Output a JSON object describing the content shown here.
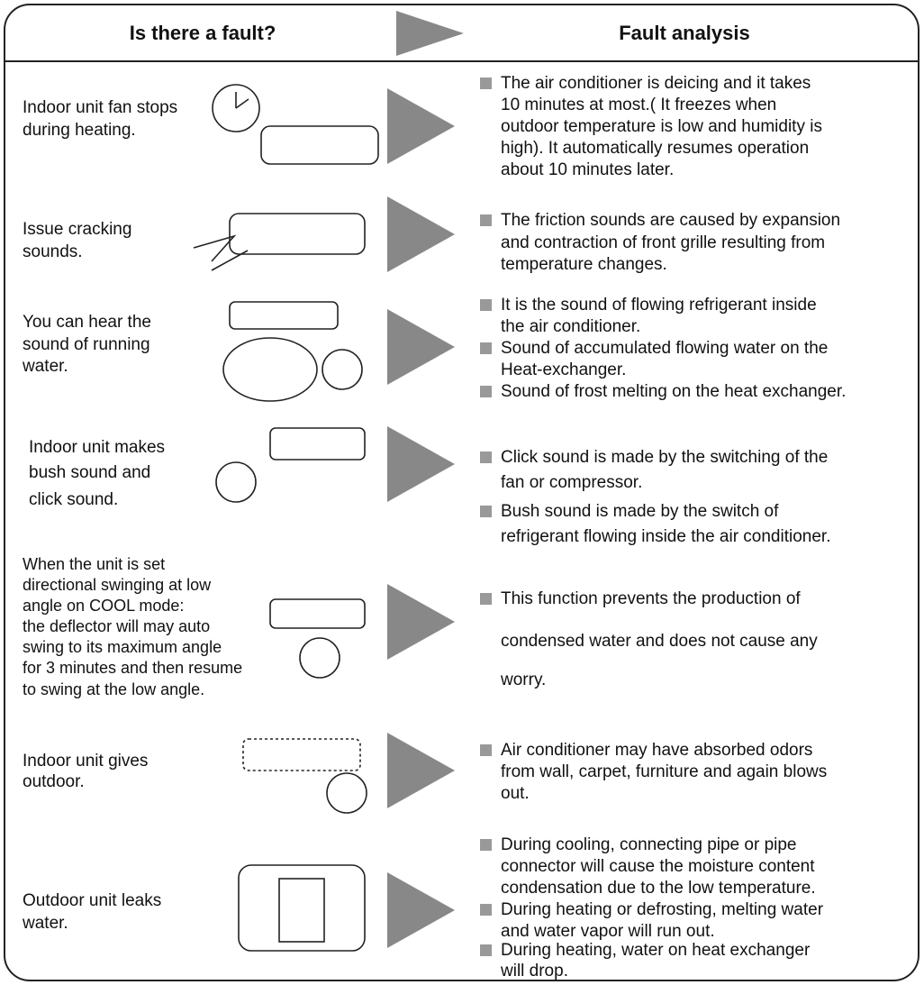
{
  "header": {
    "fault": "Is there a fault?",
    "analysis": "Fault analysis"
  },
  "rows": [
    {
      "fault": [
        "Indoor unit fan stops",
        "during heating."
      ],
      "analysis": [
        [
          "The air conditioner is deicing and it takes",
          "10 minutes at most.( It freezes when",
          "outdoor temperature is low and humidity is",
          "high). It automatically resumes operation",
          "about 10 minutes later."
        ]
      ]
    },
    {
      "fault": [
        "Issue cracking",
        "sounds."
      ],
      "analysis": [
        [
          "The friction sounds are caused by expansion",
          "and contraction of front grille resulting from",
          "temperature changes."
        ]
      ]
    },
    {
      "fault": [
        "You can hear the",
        "sound of running",
        "water."
      ],
      "analysis": [
        [
          "It is the sound of flowing refrigerant inside",
          "the air conditioner."
        ],
        [
          "Sound of accumulated flowing water on the",
          "Heat-exchanger."
        ],
        [
          "Sound of frost melting on the heat exchanger."
        ]
      ]
    },
    {
      "fault": [
        "Indoor unit makes",
        "bush sound and",
        "click sound."
      ],
      "analysis": [
        [
          "Click sound is made by the switching of the",
          "fan or compressor."
        ],
        [
          "Bush sound is made by the switch of",
          "refrigerant flowing inside the air conditioner."
        ]
      ]
    },
    {
      "fault": [
        "When the unit is set",
        "directional swinging at low",
        "angle on COOL mode:",
        "the deflector will may auto",
        "swing to its maximum angle",
        "for 3 minutes and then resume",
        "to swing at the low angle."
      ],
      "analysis": [
        [
          "This function prevents the production of",
          "condensed water and does not cause any",
          "worry."
        ]
      ]
    },
    {
      "fault": [
        "Indoor unit gives",
        "outdoor."
      ],
      "analysis": [
        [
          "Air conditioner may have absorbed odors",
          "from wall, carpet, furniture and again blows",
          "out."
        ]
      ]
    },
    {
      "fault": [
        "Outdoor unit leaks",
        "water."
      ],
      "analysis": [
        [
          "During cooling, connecting pipe or pipe",
          "connector will cause the moisture content",
          "condensation due to the low temperature."
        ],
        [
          "During heating or defrosting, melting water",
          "and water vapor will run out."
        ],
        [
          "During heating, water on heat exchanger",
          "will drop."
        ]
      ]
    }
  ]
}
